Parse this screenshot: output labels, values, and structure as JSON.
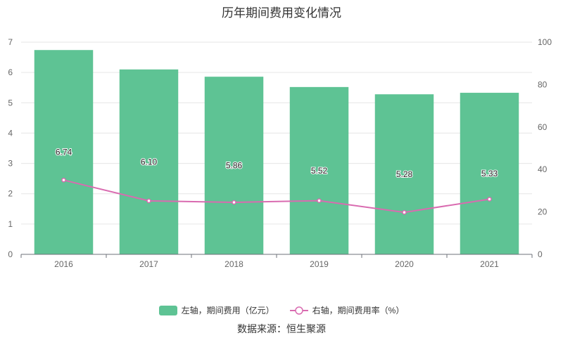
{
  "chart_data": {
    "type": "bar",
    "title": "历年期间费用变化情况",
    "categories": [
      "2016",
      "2017",
      "2018",
      "2019",
      "2020",
      "2021"
    ],
    "series": [
      {
        "name": "左轴，期间费用（亿元）",
        "type": "bar",
        "axis": "left",
        "color": "#5ec394",
        "values": [
          6.74,
          6.1,
          5.86,
          5.52,
          5.28,
          5.33
        ],
        "data_labels": [
          "6.74",
          "6.10",
          "5.86",
          "5.52",
          "5.28",
          "5.33"
        ]
      },
      {
        "name": "右轴，期间费用率（%）",
        "type": "line",
        "axis": "right",
        "color": "#d96bb0",
        "values": [
          35.0,
          25.2,
          24.5,
          25.3,
          19.8,
          26.0
        ]
      }
    ],
    "y_left": {
      "ylim": [
        0,
        7
      ],
      "ticks": [
        "0",
        "1",
        "2",
        "3",
        "4",
        "5",
        "6",
        "7"
      ]
    },
    "y_right": {
      "ylim": [
        0,
        100
      ],
      "ticks": [
        "0",
        "20",
        "40",
        "60",
        "80",
        "100"
      ]
    },
    "grid": true,
    "legend_position": "bottom"
  },
  "source_text": "数据来源：恒生聚源"
}
